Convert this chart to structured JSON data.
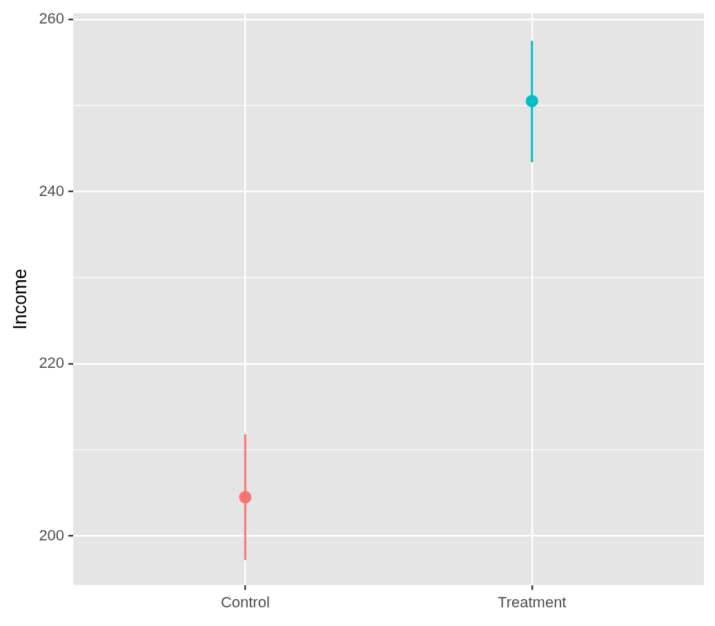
{
  "chart_data": {
    "type": "scatter",
    "ylabel": "Income",
    "categories": [
      "Control",
      "Treatment"
    ],
    "values": [
      204.5,
      250.5
    ],
    "colors": [
      "#f8766d",
      "#00bfc4"
    ],
    "errors": [
      [
        197.2,
        211.8
      ],
      [
        243.4,
        257.5
      ]
    ],
    "ylim": [
      194.3,
      260.7
    ],
    "yticks": [
      200,
      220,
      240,
      260
    ],
    "grid": true,
    "legend": false,
    "marker": "circle"
  }
}
